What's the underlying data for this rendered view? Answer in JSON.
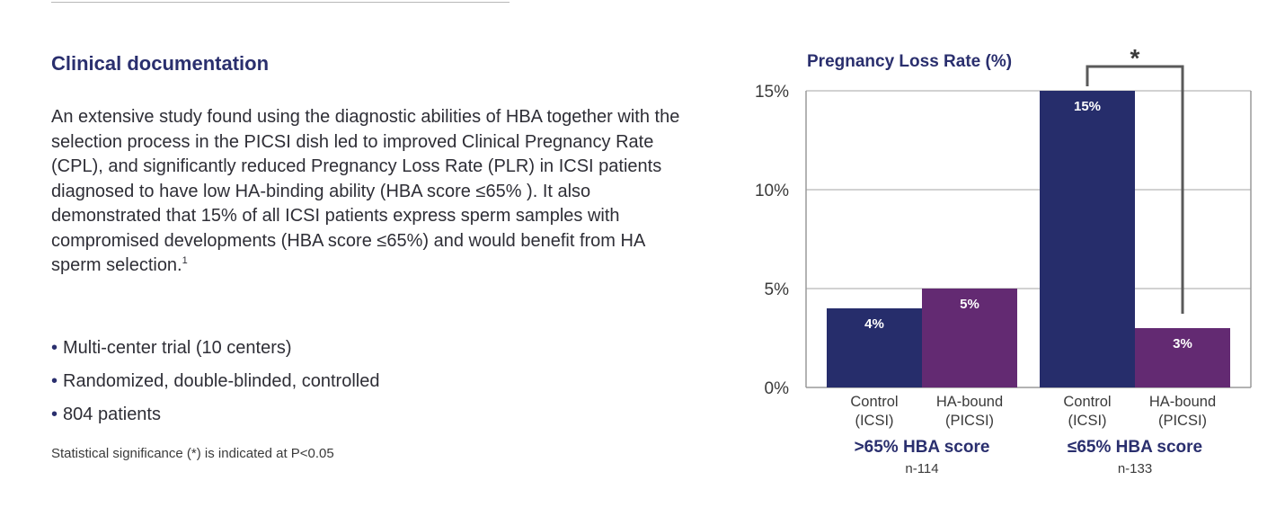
{
  "content": {
    "heading": "Clinical documentation",
    "paragraph": "An extensive study found using the diagnostic abilities of HBA together with the selection process in the PICSI dish led to improved Clinical Pregnancy Rate (CPL), and significantly reduced Pregnancy Loss Rate (PLR) in ICSI patients diagnosed to have low HA-binding ability (HBA score ≤65% ). It also demonstrated that 15% of all ICSI patients express sperm samples with compromised developments (HBA score ≤65%) and would benefit from HA sperm selection.",
    "paragraph_ref": "1",
    "bullets": [
      "Multi-center trial (10 centers)",
      "Randomized, double-blinded, controlled",
      "804 patients"
    ],
    "bullet_glyph": "•",
    "footnote": "Statistical significance (*) is indicated at P<0.05"
  },
  "chart_data": {
    "type": "bar",
    "title": "Pregnancy Loss Rate (%)",
    "ylim": [
      0,
      15
    ],
    "yticks": [
      {
        "value": 0,
        "label": "0%"
      },
      {
        "value": 5,
        "label": "5%"
      },
      {
        "value": 10,
        "label": "10%"
      },
      {
        "value": 15,
        "label": "15%"
      }
    ],
    "grid": true,
    "colors": {
      "control": "#262d6b",
      "ha_bound": "#632a72"
    },
    "groups": [
      {
        "label": ">65% HBA score",
        "n": "n-114",
        "bars": [
          {
            "category_line1": "Control",
            "category_line2": "(ICSI)",
            "value": 4,
            "label": "4%",
            "series": "control"
          },
          {
            "category_line1": "HA-bound",
            "category_line2": "(PICSI)",
            "value": 5,
            "label": "5%",
            "series": "ha_bound"
          }
        ]
      },
      {
        "label": "≤65% HBA score",
        "n": "n-133",
        "bars": [
          {
            "category_line1": "Control",
            "category_line2": "(ICSI)",
            "value": 15,
            "label": "15%",
            "series": "control"
          },
          {
            "category_line1": "HA-bound",
            "category_line2": "(PICSI)",
            "value": 3,
            "label": "3%",
            "series": "ha_bound"
          }
        ]
      }
    ],
    "significance": {
      "from": [
        1,
        0
      ],
      "to": [
        1,
        1
      ],
      "marker": "*"
    }
  }
}
